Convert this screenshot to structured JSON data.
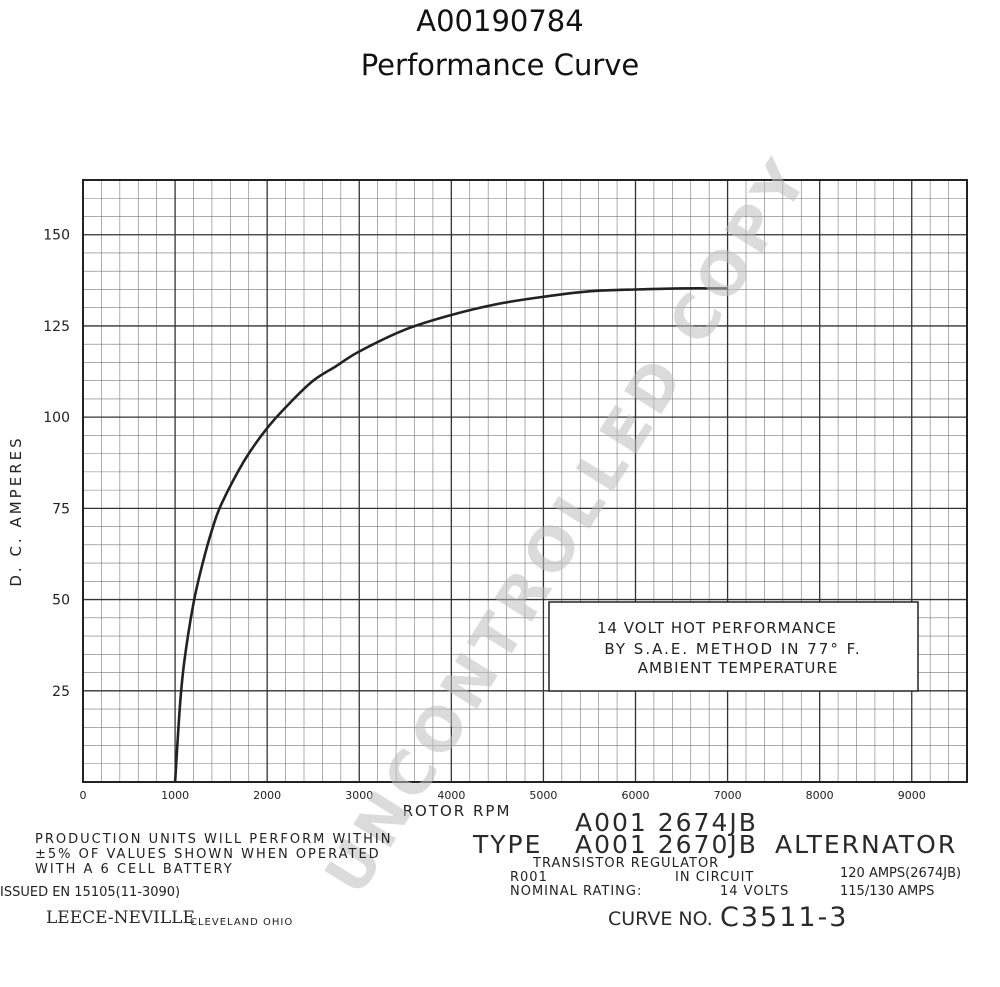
{
  "header": {
    "part_number": "A00190784",
    "subtitle": "Performance Curve"
  },
  "chart_data": {
    "type": "line",
    "xlabel": "ROTOR RPM",
    "ylabel": "D. C. AMPERES",
    "xlim": [
      0,
      9600
    ],
    "ylim": [
      0,
      165
    ],
    "x_ticks": [
      "0",
      "1000",
      "2000",
      "3000",
      "4000",
      "5000",
      "6000",
      "7000",
      "8000",
      "9000"
    ],
    "y_ticks": [
      "25",
      "50",
      "75",
      "100",
      "125",
      "150"
    ],
    "grid": true,
    "series": [
      {
        "x": [
          1000,
          1050,
          1100,
          1200,
          1300,
          1400,
          1500,
          1750,
          2000,
          2250,
          2500,
          2750,
          3000,
          3500,
          4000,
          4500,
          5000,
          5500,
          6000,
          6500,
          7000
        ],
        "y": [
          0,
          20,
          33,
          49,
          60,
          69,
          76,
          88,
          97,
          104,
          110,
          114,
          118,
          124,
          128,
          131,
          133,
          134.5,
          135,
          135.3,
          135.3
        ]
      }
    ],
    "annotation": [
      "14 VOLT HOT PERFORMANCE",
      "BY S.A.E. METHOD IN 77° F.",
      "AMBIENT TEMPERATURE"
    ]
  },
  "footer": {
    "production_note": [
      "PRODUCTION UNITS WILL PERFORM WITHIN",
      "±5% OF VALUES SHOWN WHEN OPERATED",
      "WITH A 6 CELL BATTERY"
    ],
    "issued": "ISSUED EN 15105(11-3090)",
    "brand": "LEECE-NEVILLE",
    "city": "CLEVELAND OHIO",
    "model_line1": "A001 2674JB",
    "model_line2": "A001 2670JB",
    "type_label": "TYPE",
    "alternator_label": "ALTERNATOR",
    "regulator_line1": "TRANSISTOR REGULATOR",
    "regulator_code": "R001",
    "regulator_line2": "IN CIRCUIT",
    "nominal_label": "NOMINAL RATING:",
    "nominal_volts": "14 VOLTS",
    "amps_line1": "120 AMPS(2674JB)",
    "amps_line2": "115/130 AMPS",
    "curve_label": "CURVE NO.",
    "curve_number": "C3511-3"
  },
  "watermark": "UNCONTROLLED COPY"
}
